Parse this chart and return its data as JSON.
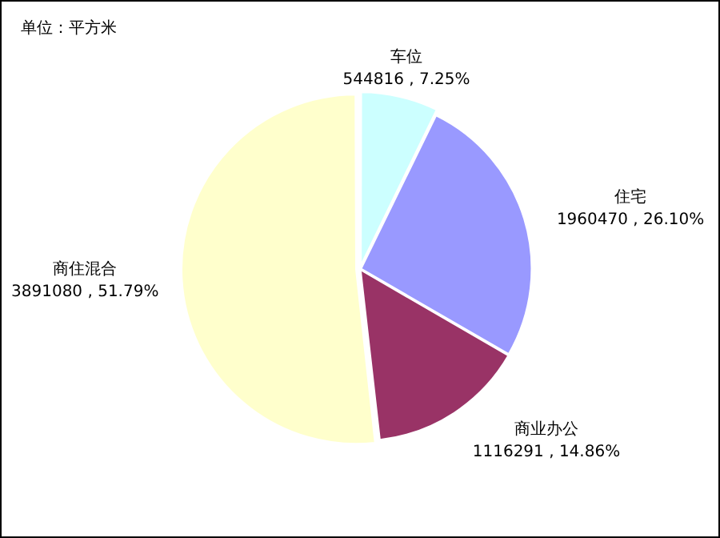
{
  "chart_data": {
    "type": "pie",
    "categories": [
      "车位",
      "住宅",
      "商业办公",
      "商住混合"
    ],
    "values": [
      544816,
      1960470,
      1116291,
      3891080
    ],
    "value_labels": [
      "544816 , 7.25%",
      "1960470 , 26.10%",
      "1116291 , 14.86%",
      "3891080 , 51.79%"
    ],
    "colors": [
      "#ccffff",
      "#9999ff",
      "#993366",
      "#ffffcc"
    ],
    "annotations": [
      "单位：平方米"
    ],
    "legend": false
  }
}
